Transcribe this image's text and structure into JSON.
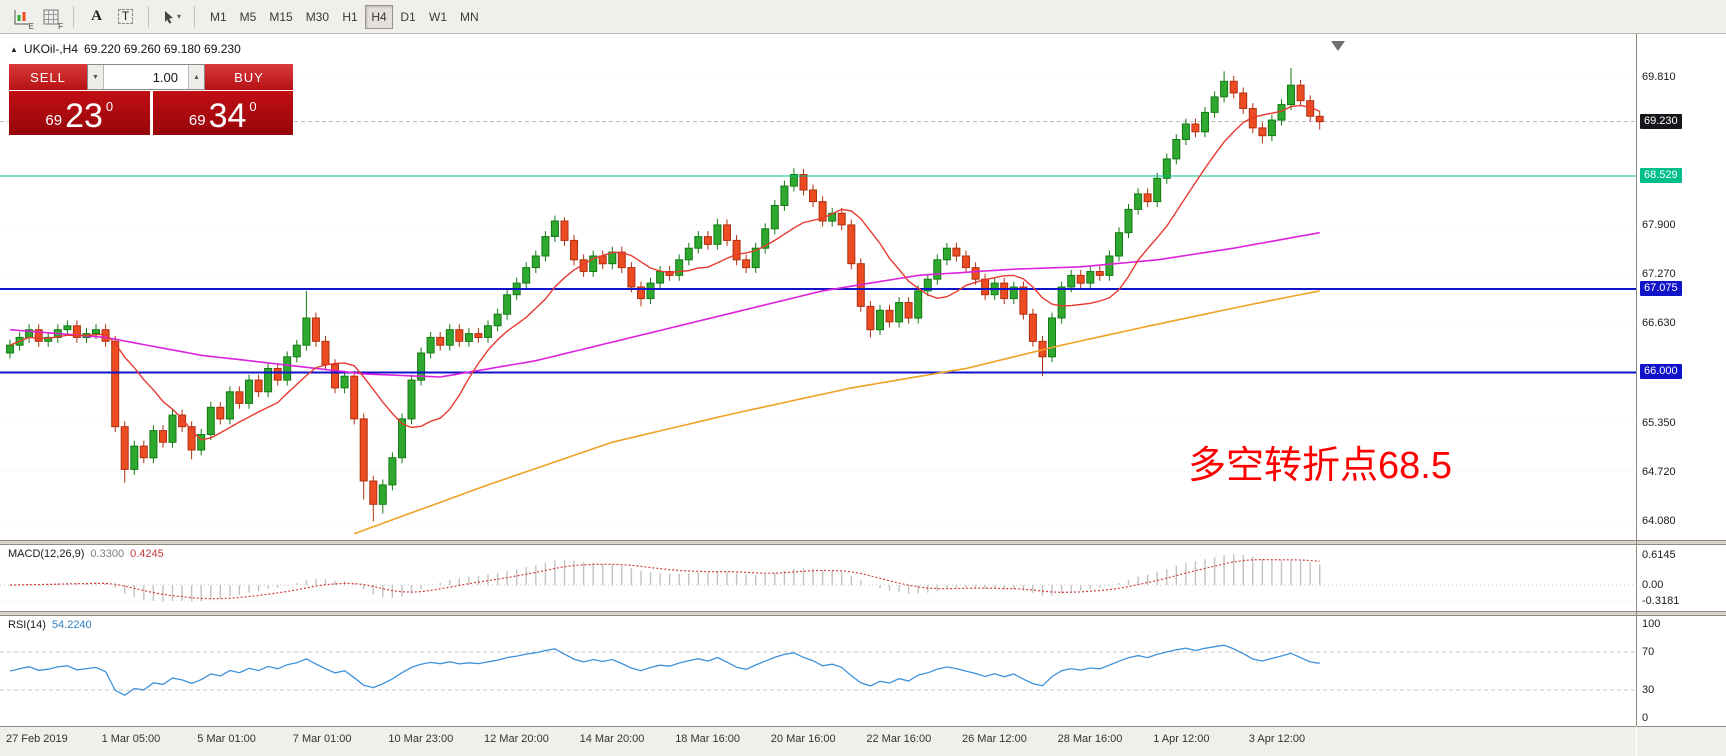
{
  "toolbar": {
    "icon_tools": [
      {
        "name": "indicator-chart-icon",
        "badge": "E"
      },
      {
        "name": "grid-icon",
        "badge": "F"
      },
      {
        "name": "text-label-icon",
        "glyph": "A"
      },
      {
        "name": "text-box-icon",
        "glyph": "T"
      },
      {
        "name": "cursor-tools-icon",
        "dropdown": "▾"
      }
    ],
    "timeframes": [
      "M1",
      "M5",
      "M15",
      "M30",
      "H1",
      "H4",
      "D1",
      "W1",
      "MN"
    ],
    "active_timeframe": "H4"
  },
  "chart": {
    "collapse_marker": "▲",
    "shift_marker": "▼",
    "symbol_title": "UKOil-,H4",
    "ohlc_text": "69.220 69.260 69.180 69.230",
    "trade_panel": {
      "sell_label": "SELL",
      "buy_label": "BUY",
      "volume": "1.00",
      "spinner_down": "▼",
      "spinner_up": "▲",
      "bid": {
        "small": "69",
        "big": "23",
        "sup": "0"
      },
      "ask": {
        "small": "69",
        "big": "34",
        "sup": "0"
      }
    },
    "annotation": {
      "text": "多空转折点68.5",
      "color": "#FF0000"
    },
    "current_price": 69.23,
    "price_axis_labels": [
      {
        "text": "69.810",
        "price": 69.81,
        "type": "plain"
      },
      {
        "text": "69.230",
        "price": 69.23,
        "type": "current"
      },
      {
        "text": "68.529",
        "price": 68.529,
        "type": "green"
      },
      {
        "text": "67.900",
        "price": 67.9,
        "type": "plain"
      },
      {
        "text": "67.270",
        "price": 67.27,
        "type": "plain"
      },
      {
        "text": "67.075",
        "price": 67.075,
        "type": "blue"
      },
      {
        "text": "66.630",
        "price": 66.63,
        "type": "plain"
      },
      {
        "text": "66.000",
        "price": 66.0,
        "type": "blue"
      },
      {
        "text": "65.350",
        "price": 65.35,
        "type": "plain"
      },
      {
        "text": "64.720",
        "price": 64.72,
        "type": "plain"
      },
      {
        "text": "64.080",
        "price": 64.08,
        "type": "plain"
      }
    ],
    "hlines": [
      {
        "price": 68.529,
        "color": "#00BE8C",
        "width": 1
      },
      {
        "price": 67.075,
        "color": "#1113C8",
        "width": 2
      },
      {
        "price": 66.0,
        "color": "#1113C8",
        "width": 2
      }
    ]
  },
  "chart_data": {
    "type": "candlestick",
    "title": "UKOil- H4",
    "ylim": [
      63.84,
      70.36
    ],
    "ohlc": [
      [
        66.25,
        66.42,
        66.18,
        66.35
      ],
      [
        66.35,
        66.52,
        66.28,
        66.45
      ],
      [
        66.45,
        66.62,
        66.38,
        66.55
      ],
      [
        66.55,
        66.62,
        66.33,
        66.4
      ],
      [
        66.4,
        66.52,
        66.33,
        66.45
      ],
      [
        66.45,
        66.62,
        66.38,
        66.55
      ],
      [
        66.55,
        66.67,
        66.48,
        66.6
      ],
      [
        66.6,
        66.67,
        66.38,
        66.45
      ],
      [
        66.45,
        66.57,
        66.38,
        66.5
      ],
      [
        66.5,
        66.62,
        66.43,
        66.55
      ],
      [
        66.55,
        66.62,
        66.33,
        66.4
      ],
      [
        66.4,
        66.47,
        65.23,
        65.3
      ],
      [
        65.3,
        65.37,
        64.58,
        64.75
      ],
      [
        64.75,
        65.12,
        64.68,
        65.05
      ],
      [
        65.05,
        65.12,
        64.83,
        64.9
      ],
      [
        64.9,
        65.32,
        64.83,
        65.25
      ],
      [
        65.25,
        65.32,
        65.03,
        65.1
      ],
      [
        65.1,
        65.52,
        65.03,
        65.45
      ],
      [
        65.45,
        65.52,
        65.23,
        65.3
      ],
      [
        65.3,
        65.37,
        64.88,
        65.0
      ],
      [
        65.0,
        65.27,
        64.93,
        65.2
      ],
      [
        65.2,
        65.62,
        65.13,
        65.55
      ],
      [
        65.55,
        65.62,
        65.33,
        65.4
      ],
      [
        65.4,
        65.82,
        65.33,
        65.75
      ],
      [
        65.75,
        65.82,
        65.53,
        65.6
      ],
      [
        65.6,
        65.97,
        65.53,
        65.9
      ],
      [
        65.9,
        65.97,
        65.68,
        65.75
      ],
      [
        65.75,
        66.12,
        65.68,
        66.05
      ],
      [
        66.05,
        66.12,
        65.83,
        65.9
      ],
      [
        65.9,
        66.27,
        65.83,
        66.2
      ],
      [
        66.2,
        66.42,
        66.13,
        66.35
      ],
      [
        66.35,
        67.05,
        66.28,
        66.7
      ],
      [
        66.7,
        66.77,
        66.33,
        66.4
      ],
      [
        66.4,
        66.47,
        66.03,
        66.1
      ],
      [
        66.1,
        66.17,
        65.73,
        65.8
      ],
      [
        65.8,
        66.02,
        65.73,
        65.95
      ],
      [
        65.95,
        66.02,
        65.33,
        65.4
      ],
      [
        65.4,
        65.47,
        64.36,
        64.6
      ],
      [
        64.6,
        64.67,
        64.08,
        64.3
      ],
      [
        64.3,
        64.62,
        64.18,
        64.55
      ],
      [
        64.55,
        64.97,
        64.48,
        64.9
      ],
      [
        64.9,
        65.47,
        64.83,
        65.4
      ],
      [
        65.4,
        65.97,
        65.33,
        65.9
      ],
      [
        65.9,
        66.32,
        65.83,
        66.25
      ],
      [
        66.25,
        66.52,
        66.18,
        66.45
      ],
      [
        66.45,
        66.52,
        66.28,
        66.35
      ],
      [
        66.35,
        66.62,
        66.28,
        66.55
      ],
      [
        66.55,
        66.62,
        66.33,
        66.4
      ],
      [
        66.4,
        66.57,
        66.33,
        66.5
      ],
      [
        66.5,
        66.57,
        66.38,
        66.45
      ],
      [
        66.45,
        66.67,
        66.38,
        66.6
      ],
      [
        66.6,
        66.82,
        66.53,
        66.75
      ],
      [
        66.75,
        67.07,
        66.68,
        67.0
      ],
      [
        67.0,
        67.22,
        66.93,
        67.15
      ],
      [
        67.15,
        67.42,
        67.08,
        67.35
      ],
      [
        67.35,
        67.57,
        67.28,
        67.5
      ],
      [
        67.5,
        67.82,
        67.43,
        67.75
      ],
      [
        67.75,
        68.02,
        67.68,
        67.95
      ],
      [
        67.95,
        68.0,
        67.63,
        67.7
      ],
      [
        67.7,
        67.77,
        67.38,
        67.45
      ],
      [
        67.45,
        67.52,
        67.23,
        67.3
      ],
      [
        67.3,
        67.57,
        67.23,
        67.5
      ],
      [
        67.5,
        67.57,
        67.33,
        67.4
      ],
      [
        67.4,
        67.62,
        67.33,
        67.55
      ],
      [
        67.55,
        67.62,
        67.28,
        67.35
      ],
      [
        67.35,
        67.42,
        67.03,
        67.1
      ],
      [
        67.1,
        67.17,
        66.85,
        66.95
      ],
      [
        66.95,
        67.22,
        66.88,
        67.15
      ],
      [
        67.15,
        67.37,
        67.08,
        67.3
      ],
      [
        67.3,
        67.37,
        67.18,
        67.25
      ],
      [
        67.25,
        67.52,
        67.18,
        67.45
      ],
      [
        67.45,
        67.67,
        67.38,
        67.6
      ],
      [
        67.6,
        67.82,
        67.53,
        67.75
      ],
      [
        67.75,
        67.82,
        67.58,
        67.65
      ],
      [
        67.65,
        67.98,
        67.58,
        67.9
      ],
      [
        67.9,
        67.97,
        67.63,
        67.7
      ],
      [
        67.7,
        67.77,
        67.38,
        67.45
      ],
      [
        67.45,
        67.52,
        67.28,
        67.35
      ],
      [
        67.35,
        67.67,
        67.28,
        67.6
      ],
      [
        67.6,
        67.92,
        67.53,
        67.85
      ],
      [
        67.85,
        68.22,
        67.78,
        68.15
      ],
      [
        68.15,
        68.47,
        68.08,
        68.4
      ],
      [
        68.4,
        68.63,
        68.33,
        68.55
      ],
      [
        68.55,
        68.62,
        68.28,
        68.35
      ],
      [
        68.35,
        68.42,
        68.13,
        68.2
      ],
      [
        68.2,
        68.27,
        67.88,
        67.95
      ],
      [
        67.95,
        68.12,
        67.88,
        68.05
      ],
      [
        68.05,
        68.12,
        67.83,
        67.9
      ],
      [
        67.9,
        67.97,
        67.33,
        67.4
      ],
      [
        67.4,
        67.47,
        66.78,
        66.85
      ],
      [
        66.85,
        66.92,
        66.45,
        66.55
      ],
      [
        66.55,
        66.87,
        66.48,
        66.8
      ],
      [
        66.8,
        66.87,
        66.58,
        66.65
      ],
      [
        66.65,
        66.97,
        66.58,
        66.9
      ],
      [
        66.9,
        66.97,
        66.63,
        66.7
      ],
      [
        66.7,
        67.12,
        66.63,
        67.05
      ],
      [
        67.05,
        67.27,
        66.98,
        67.2
      ],
      [
        67.2,
        67.52,
        67.13,
        67.45
      ],
      [
        67.45,
        67.67,
        67.38,
        67.6
      ],
      [
        67.6,
        67.67,
        67.43,
        67.5
      ],
      [
        67.5,
        67.57,
        67.28,
        67.35
      ],
      [
        67.35,
        67.42,
        67.13,
        67.2
      ],
      [
        67.2,
        67.27,
        66.93,
        67.0
      ],
      [
        67.0,
        67.22,
        66.93,
        67.15
      ],
      [
        67.15,
        67.22,
        66.88,
        66.95
      ],
      [
        66.95,
        67.17,
        66.88,
        67.1
      ],
      [
        67.1,
        67.17,
        66.68,
        66.75
      ],
      [
        66.75,
        66.82,
        66.33,
        66.4
      ],
      [
        66.4,
        66.47,
        65.95,
        66.2
      ],
      [
        66.2,
        66.77,
        66.13,
        66.7
      ],
      [
        66.7,
        67.17,
        66.63,
        67.1
      ],
      [
        67.1,
        67.32,
        67.03,
        67.25
      ],
      [
        67.25,
        67.32,
        67.08,
        67.15
      ],
      [
        67.15,
        67.37,
        67.08,
        67.3
      ],
      [
        67.3,
        67.37,
        67.18,
        67.25
      ],
      [
        67.25,
        67.57,
        67.18,
        67.5
      ],
      [
        67.5,
        67.87,
        67.43,
        67.8
      ],
      [
        67.8,
        68.17,
        67.73,
        68.1
      ],
      [
        68.1,
        68.37,
        68.03,
        68.3
      ],
      [
        68.3,
        68.37,
        68.13,
        68.2
      ],
      [
        68.2,
        68.57,
        68.13,
        68.5
      ],
      [
        68.5,
        68.82,
        68.43,
        68.75
      ],
      [
        68.75,
        69.07,
        68.68,
        69.0
      ],
      [
        69.0,
        69.27,
        68.93,
        69.2
      ],
      [
        69.2,
        69.27,
        69.03,
        69.1
      ],
      [
        69.1,
        69.42,
        69.03,
        69.35
      ],
      [
        69.35,
        69.62,
        69.28,
        69.55
      ],
      [
        69.55,
        69.88,
        69.48,
        69.75
      ],
      [
        69.75,
        69.82,
        69.53,
        69.6
      ],
      [
        69.6,
        69.67,
        69.33,
        69.4
      ],
      [
        69.4,
        69.47,
        69.08,
        69.15
      ],
      [
        69.15,
        69.22,
        68.95,
        69.05
      ],
      [
        69.05,
        69.32,
        68.98,
        69.25
      ],
      [
        69.25,
        69.52,
        69.18,
        69.45
      ],
      [
        69.45,
        69.92,
        69.38,
        69.7
      ],
      [
        69.7,
        69.77,
        69.43,
        69.5
      ],
      [
        69.5,
        69.57,
        69.23,
        69.3
      ],
      [
        69.3,
        69.37,
        69.13,
        69.23
      ]
    ],
    "x_labels": [
      {
        "i": 0,
        "text": "27 Feb 2019"
      },
      {
        "i": 10,
        "text": "1 Mar 05:00"
      },
      {
        "i": 20,
        "text": "5 Mar 01:00"
      },
      {
        "i": 30,
        "text": "7 Mar 01:00"
      },
      {
        "i": 40,
        "text": "10 Mar 23:00"
      },
      {
        "i": 50,
        "text": "12 Mar 20:00"
      },
      {
        "i": 60,
        "text": "14 Mar 20:00"
      },
      {
        "i": 70,
        "text": "18 Mar 16:00"
      },
      {
        "i": 80,
        "text": "20 Mar 16:00"
      },
      {
        "i": 90,
        "text": "22 Mar 16:00"
      },
      {
        "i": 100,
        "text": "26 Mar 12:00"
      },
      {
        "i": 110,
        "text": "28 Mar 16:00"
      },
      {
        "i": 120,
        "text": "1 Apr 12:00"
      },
      {
        "i": 130,
        "text": "3 Apr 12:00"
      }
    ],
    "ma_red_period": 10,
    "ma_magenta_anchors": [
      [
        0,
        66.55
      ],
      [
        10,
        66.45
      ],
      [
        20,
        66.22
      ],
      [
        30,
        66.08
      ],
      [
        37,
        65.98
      ],
      [
        45,
        65.94
      ],
      [
        55,
        66.15
      ],
      [
        65,
        66.45
      ],
      [
        75,
        66.75
      ],
      [
        85,
        67.05
      ],
      [
        95,
        67.25
      ],
      [
        105,
        67.33
      ],
      [
        112,
        67.36
      ],
      [
        120,
        67.45
      ],
      [
        128,
        67.6
      ],
      [
        137,
        67.8
      ]
    ],
    "ma_orange_anchors": [
      [
        36,
        63.92
      ],
      [
        50,
        64.55
      ],
      [
        63,
        65.1
      ],
      [
        75,
        65.45
      ],
      [
        88,
        65.8
      ],
      [
        100,
        66.05
      ],
      [
        110,
        66.35
      ],
      [
        120,
        66.62
      ],
      [
        130,
        66.88
      ],
      [
        137,
        67.05
      ]
    ],
    "colors": {
      "bull": "#2FA82F",
      "bull_border": "#157A15",
      "bear": "#ED4B22",
      "bear_border": "#B03010",
      "ma_red": "#E83A30",
      "ma_magenta": "#DD22DD",
      "ma_orange": "#EFA224",
      "macd_hist": "#C2C2C2",
      "macd_signal": "#D23F3F",
      "rsi": "#3E92DC"
    },
    "macd": {
      "label": "MACD(12,26,9)",
      "value_main": "0.3300",
      "value_signal": "0.4245",
      "axis": [
        "0.6145",
        "0.00",
        "-0.3181"
      ]
    },
    "rsi": {
      "label": "RSI(14)",
      "value": "54.2240",
      "axis": [
        100,
        70,
        30,
        0
      ],
      "levels": [
        70,
        30
      ]
    }
  }
}
